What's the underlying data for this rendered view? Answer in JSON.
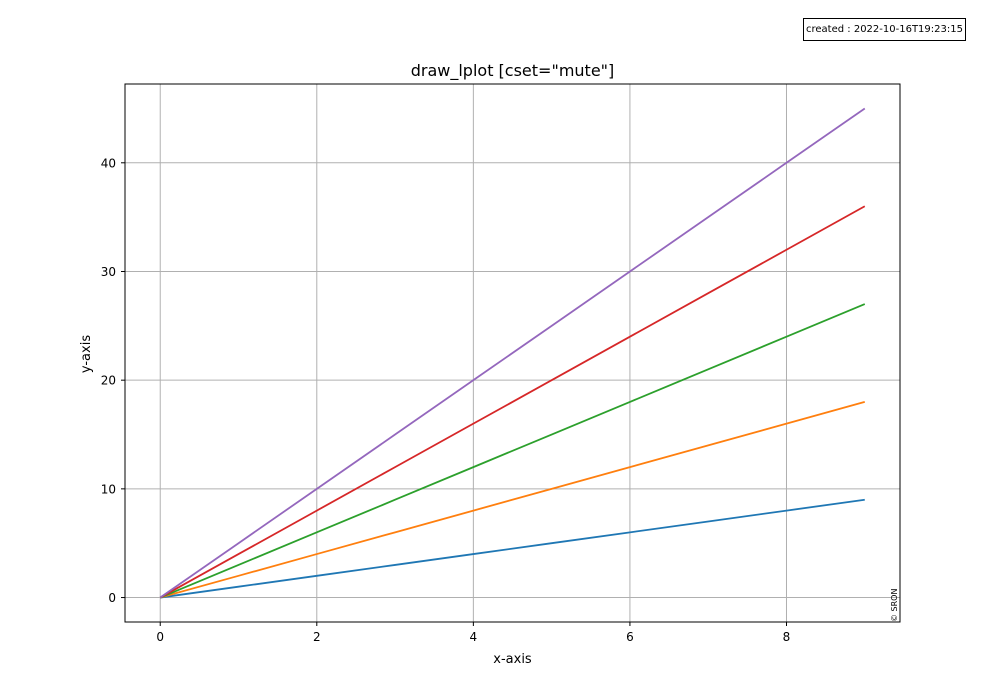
{
  "created_label": "created : 2022-10-16T19:23:15",
  "copyright": "© SRON",
  "chart_data": {
    "type": "line",
    "title": "draw_lplot [cset=\"mute\"]",
    "xlabel": "x-axis",
    "ylabel": "y-axis",
    "xlim": [
      -0.45,
      9.45
    ],
    "ylim": [
      -2.25,
      47.25
    ],
    "xticks": [
      0,
      2,
      4,
      6,
      8
    ],
    "yticks": [
      0,
      10,
      20,
      30,
      40
    ],
    "grid": true,
    "x": [
      0,
      1,
      2,
      3,
      4,
      5,
      6,
      7,
      8,
      9
    ],
    "series": [
      {
        "color": "#1f77b4",
        "values": [
          0,
          1,
          2,
          3,
          4,
          5,
          6,
          7,
          8,
          9
        ]
      },
      {
        "color": "#ff7f0e",
        "values": [
          0,
          2,
          4,
          6,
          8,
          10,
          12,
          14,
          16,
          18
        ]
      },
      {
        "color": "#2ca02c",
        "values": [
          0,
          3,
          6,
          9,
          12,
          15,
          18,
          21,
          24,
          27
        ]
      },
      {
        "color": "#d62728",
        "values": [
          0,
          4,
          8,
          12,
          16,
          20,
          24,
          28,
          32,
          36
        ]
      },
      {
        "color": "#9467bd",
        "values": [
          0,
          5,
          10,
          15,
          20,
          25,
          30,
          35,
          40,
          45
        ]
      }
    ]
  }
}
